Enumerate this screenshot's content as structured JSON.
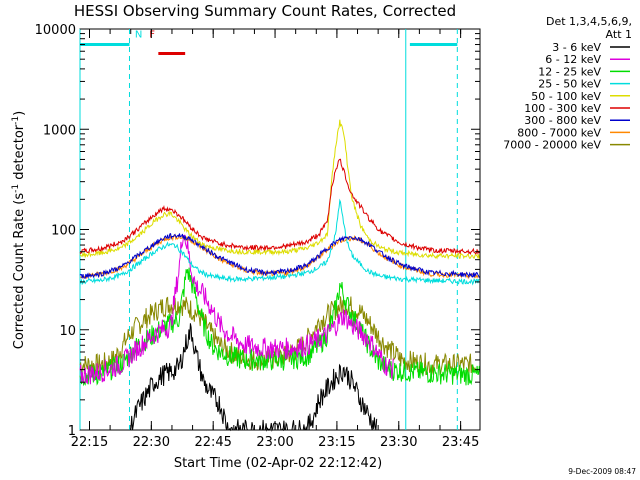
{
  "chart_data": {
    "type": "line",
    "title": "HESSI Observing Summary Count Rates, Corrected",
    "xlabel": "Start Time (02-Apr-02 22:12:42)",
    "ylabel": "Corrected Count Rate (s",
    "ylabel_sup1": "-1",
    "ylabel_mid": " detector",
    "ylabel_sup2": "-1",
    "ylabel_end": ")",
    "yscale": "log",
    "ylim": [
      1,
      10000
    ],
    "xlim_minutes": [
      0,
      97
    ],
    "x_ticks": [
      {
        "label": "22:15",
        "t": 2.3
      },
      {
        "label": "22:30",
        "t": 17.3
      },
      {
        "label": "22:45",
        "t": 32.3
      },
      {
        "label": "23:00",
        "t": 47.3
      },
      {
        "label": "23:15",
        "t": 62.3
      },
      {
        "label": "23:30",
        "t": 77.3
      },
      {
        "label": "23:45",
        "t": 92.3
      }
    ],
    "y_ticks": [
      {
        "label": "1",
        "v": 1
      },
      {
        "label": "10",
        "v": 10
      },
      {
        "label": "100",
        "v": 100
      },
      {
        "label": "1000",
        "v": 1000
      },
      {
        "label": "10000",
        "v": 10000
      }
    ],
    "legend_header": [
      "Det 1,3,4,5,6,9,",
      "Att 1"
    ],
    "legend_position": "right",
    "series": [
      {
        "name": "3 - 6 keV",
        "color": "#000000",
        "x": [
          12,
          14,
          16,
          18,
          20,
          22,
          24,
          26,
          27,
          28,
          30,
          32,
          34,
          36,
          40,
          45,
          50,
          55,
          57,
          58,
          60,
          62,
          64,
          66,
          68,
          70,
          72
        ],
        "y": [
          1,
          1.6,
          2.2,
          3,
          3.5,
          3.8,
          4.2,
          8,
          10,
          6,
          3,
          2.2,
          1.8,
          1,
          1,
          1,
          1,
          1,
          1.5,
          2,
          2.6,
          3.4,
          4,
          3,
          2,
          1.4,
          1
        ]
      },
      {
        "name": "6 - 12 keV",
        "color": "#dd00dd",
        "x": [
          0,
          5,
          10,
          14,
          18,
          20,
          22,
          24,
          25,
          26,
          27,
          28,
          30,
          32,
          34,
          36,
          40,
          45,
          50,
          55,
          58,
          60,
          62,
          64,
          66,
          68,
          70,
          72,
          74,
          76
        ],
        "y": [
          3.5,
          3.8,
          4.5,
          6.5,
          9,
          10,
          11,
          40,
          100,
          70,
          40,
          28,
          22,
          16,
          11,
          9,
          7,
          6.5,
          6.5,
          7,
          8,
          9,
          11,
          14,
          11,
          9.5,
          8,
          6,
          4.5,
          4
        ]
      },
      {
        "name": "12 - 25 keV",
        "color": "#00dd00",
        "x": [
          0,
          5,
          10,
          14,
          18,
          20,
          22,
          24,
          26,
          27,
          28,
          30,
          32,
          34,
          36,
          40,
          45,
          50,
          55,
          58,
          60,
          62,
          63,
          64,
          65,
          66,
          68,
          70,
          72,
          75,
          80,
          97
        ],
        "y": [
          3.5,
          3.6,
          4.5,
          7,
          9,
          10.5,
          11.5,
          13,
          40,
          30,
          22,
          11,
          7,
          6,
          5.5,
          5,
          5,
          5,
          5.5,
          7,
          9,
          16,
          28,
          22,
          17,
          14,
          10,
          7,
          5,
          4,
          3.8,
          3.5
        ]
      },
      {
        "name": "25 - 50 keV",
        "color": "#00dddd",
        "x": [
          0,
          5,
          10,
          14,
          18,
          21,
          23,
          25,
          27,
          29,
          32,
          36,
          40,
          45,
          50,
          55,
          58,
          60,
          62,
          63,
          64,
          65,
          66,
          68,
          70,
          73,
          78,
          85,
          97
        ],
        "y": [
          30,
          31,
          35,
          45,
          60,
          70,
          70,
          58,
          45,
          38,
          34,
          32,
          32,
          33,
          34,
          37,
          42,
          48,
          90,
          200,
          110,
          70,
          55,
          45,
          38,
          34,
          32,
          31,
          30
        ]
      },
      {
        "name": "50 - 100 keV",
        "color": "#dddd00",
        "x": [
          0,
          5,
          10,
          14,
          18,
          20,
          22,
          24,
          26,
          28,
          30,
          34,
          40,
          45,
          50,
          55,
          58,
          60,
          61,
          62,
          63,
          64,
          65,
          66,
          68,
          70,
          73,
          78,
          85,
          97
        ],
        "y": [
          55,
          58,
          65,
          85,
          120,
          140,
          145,
          120,
          95,
          80,
          70,
          63,
          60,
          60,
          60,
          65,
          75,
          90,
          300,
          700,
          1200,
          900,
          400,
          200,
          110,
          80,
          65,
          58,
          55,
          54
        ]
      },
      {
        "name": "100 - 300 keV",
        "color": "#dd0000",
        "x": [
          0,
          5,
          10,
          14,
          18,
          20,
          22,
          24,
          26,
          28,
          30,
          34,
          40,
          45,
          50,
          55,
          58,
          60,
          61,
          62,
          63,
          64,
          65,
          66,
          68,
          70,
          73,
          78,
          85,
          97
        ],
        "y": [
          60,
          64,
          75,
          100,
          140,
          160,
          160,
          140,
          115,
          95,
          82,
          72,
          66,
          66,
          68,
          75,
          90,
          120,
          260,
          400,
          500,
          380,
          280,
          220,
          170,
          130,
          95,
          72,
          62,
          60
        ]
      },
      {
        "name": "300 - 800 keV",
        "color": "#0000cc",
        "x": [
          0,
          5,
          10,
          14,
          18,
          21,
          24,
          27,
          30,
          34,
          40,
          45,
          50,
          55,
          58,
          60,
          62,
          64,
          66,
          68,
          70,
          73,
          78,
          85,
          97
        ],
        "y": [
          34,
          36,
          42,
          55,
          72,
          85,
          88,
          80,
          66,
          52,
          40,
          37,
          38,
          44,
          55,
          65,
          75,
          82,
          84,
          80,
          72,
          58,
          44,
          37,
          35
        ]
      },
      {
        "name": "800 - 7000 keV",
        "color": "#ff8800",
        "x": [
          0,
          5,
          10,
          14,
          18,
          21,
          24,
          27,
          30,
          34,
          40,
          45,
          50,
          55,
          58,
          60,
          62,
          64,
          66,
          68,
          70,
          73,
          78,
          85,
          97
        ],
        "y": [
          34,
          36,
          41,
          53,
          70,
          82,
          85,
          78,
          64,
          50,
          39,
          36,
          37,
          43,
          53,
          63,
          73,
          80,
          82,
          78,
          70,
          56,
          43,
          36,
          34
        ]
      },
      {
        "name": "7000 - 20000 keV",
        "color": "#888800",
        "x": [
          0,
          5,
          8,
          10,
          12,
          14,
          16,
          18,
          20,
          22,
          24,
          26,
          28,
          30,
          32,
          34,
          38,
          42,
          46,
          50,
          54,
          56,
          58,
          60,
          62,
          64,
          66,
          68,
          70,
          72,
          74,
          78,
          85,
          97
        ],
        "y": [
          4.5,
          4.5,
          5,
          6.5,
          9,
          11,
          13,
          15,
          17,
          18,
          18,
          17,
          15,
          12,
          9,
          7,
          5.5,
          5,
          5,
          5.5,
          7,
          9,
          12,
          14,
          16,
          18,
          17,
          15,
          12,
          9,
          7,
          5,
          4.5,
          4.5
        ]
      }
    ],
    "attenuator_bars": [
      {
        "t0": 0,
        "t1": 12,
        "color": "#00dddd"
      },
      {
        "t0": 80,
        "t1": 91.5,
        "color": "#00dddd"
      }
    ],
    "flag_bar": {
      "t0": 19,
      "t1": 25.5,
      "level": 5700,
      "color": "#dd0000"
    },
    "markers": [
      {
        "label": "N",
        "t": 14.2,
        "color": "#00dddd"
      },
      {
        "label": "F",
        "t": 17.5,
        "color": "#dd0000"
      }
    ],
    "vlines_solid": [
      0,
      79
    ],
    "vlines_dashed": [
      12,
      91.5
    ],
    "grid": false
  },
  "footer": {
    "date_stamp": "9-Dec-2009 08:47"
  }
}
